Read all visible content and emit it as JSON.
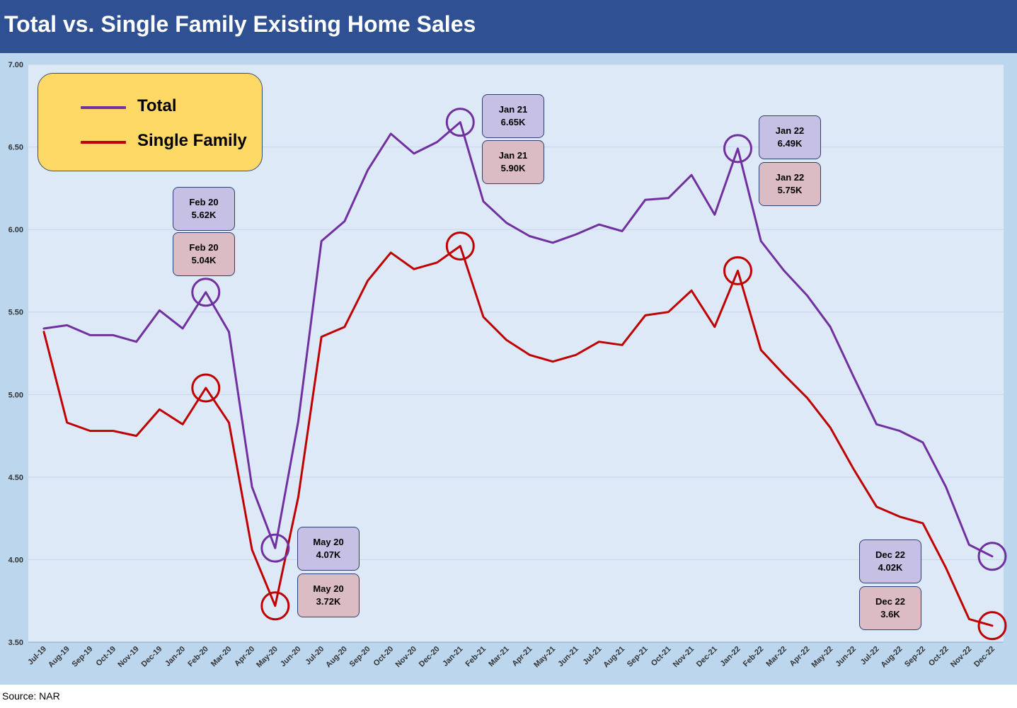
{
  "header": {
    "title": "Total vs. Single Family Existing Home Sales"
  },
  "source": "Source: NAR",
  "colors": {
    "header_bg": "#2f5193",
    "frame_bg": "#bcd6ee",
    "plot_bg": "#dde9f6",
    "total": "#7030a0",
    "single_family": "#c00000",
    "legend_bg": "#ffd966",
    "callout_total": "#c5c0e4",
    "callout_single": "#dcbcc4"
  },
  "legend": {
    "items": [
      {
        "label": "Total"
      },
      {
        "label": "Single Family"
      }
    ]
  },
  "callouts": [
    {
      "total": {
        "line1": "Feb 20",
        "line2": "5.62K"
      },
      "single": {
        "line1": "Feb 20",
        "line2": "5.04K"
      }
    },
    {
      "total": {
        "line1": "May 20",
        "line2": "4.07K"
      },
      "single": {
        "line1": "May 20",
        "line2": "3.72K"
      }
    },
    {
      "total": {
        "line1": "Jan 21",
        "line2": "6.65K"
      },
      "single": {
        "line1": "Jan 21",
        "line2": "5.90K"
      }
    },
    {
      "total": {
        "line1": "Jan 22",
        "line2": "6.49K"
      },
      "single": {
        "line1": "Jan 22",
        "line2": "5.75K"
      }
    },
    {
      "total": {
        "line1": "Dec 22",
        "line2": "4.02K"
      },
      "single": {
        "line1": "Dec 22",
        "line2": "3.6K"
      }
    }
  ],
  "chart_data": {
    "type": "line",
    "title": "Total vs. Single Family Existing Home Sales",
    "xlabel": "",
    "ylabel": "",
    "ylim": [
      3.5,
      7.0
    ],
    "yticks": [
      "3.50",
      "4.00",
      "4.50",
      "5.00",
      "5.50",
      "6.00",
      "6.50",
      "7.00"
    ],
    "grid": true,
    "legend_position": "top-left",
    "categories": [
      "Jul-19",
      "Aug-19",
      "Sep-19",
      "Oct-19",
      "Nov-19",
      "Dec-19",
      "Jan-20",
      "Feb-20",
      "Mar-20",
      "Apr-20",
      "May-20",
      "Jun-20",
      "Jul-20",
      "Aug-20",
      "Sep-20",
      "Oct-20",
      "Nov-20",
      "Dec-20",
      "Jan-21",
      "Feb-21",
      "Mar-21",
      "Apr-21",
      "May-21",
      "Jun-21",
      "Jul-21",
      "Aug-21",
      "Sep-21",
      "Oct-21",
      "Nov-21",
      "Dec-21",
      "Jan-22",
      "Feb-22",
      "Mar-22",
      "Apr-22",
      "May-22",
      "Jun-22",
      "Jul-22",
      "Aug-22",
      "Sep-22",
      "Oct-22",
      "Nov-22",
      "Dec-22"
    ],
    "series": [
      {
        "name": "Total",
        "values": [
          5.4,
          5.42,
          5.36,
          5.36,
          5.32,
          5.51,
          5.4,
          5.62,
          5.38,
          4.44,
          4.07,
          4.84,
          5.93,
          6.05,
          6.36,
          6.58,
          6.46,
          6.53,
          6.65,
          6.17,
          6.04,
          5.96,
          5.92,
          5.97,
          6.03,
          5.99,
          6.18,
          6.19,
          6.33,
          6.09,
          6.49,
          5.93,
          5.75,
          5.6,
          5.41,
          5.11,
          4.82,
          4.78,
          4.71,
          4.44,
          4.09,
          4.02
        ]
      },
      {
        "name": "Single Family",
        "values": [
          5.38,
          4.83,
          4.78,
          4.78,
          4.75,
          4.91,
          4.82,
          5.04,
          4.83,
          4.06,
          3.72,
          4.38,
          5.35,
          5.41,
          5.69,
          5.86,
          5.76,
          5.8,
          5.9,
          5.47,
          5.33,
          5.24,
          5.2,
          5.24,
          5.32,
          5.3,
          5.48,
          5.5,
          5.63,
          5.41,
          5.75,
          5.27,
          5.12,
          4.98,
          4.8,
          4.55,
          4.32,
          4.26,
          4.22,
          3.95,
          3.64,
          3.6
        ]
      }
    ],
    "highlighted_points": [
      "Feb-20",
      "May-20",
      "Jan-21",
      "Jan-22",
      "Dec-22"
    ]
  }
}
